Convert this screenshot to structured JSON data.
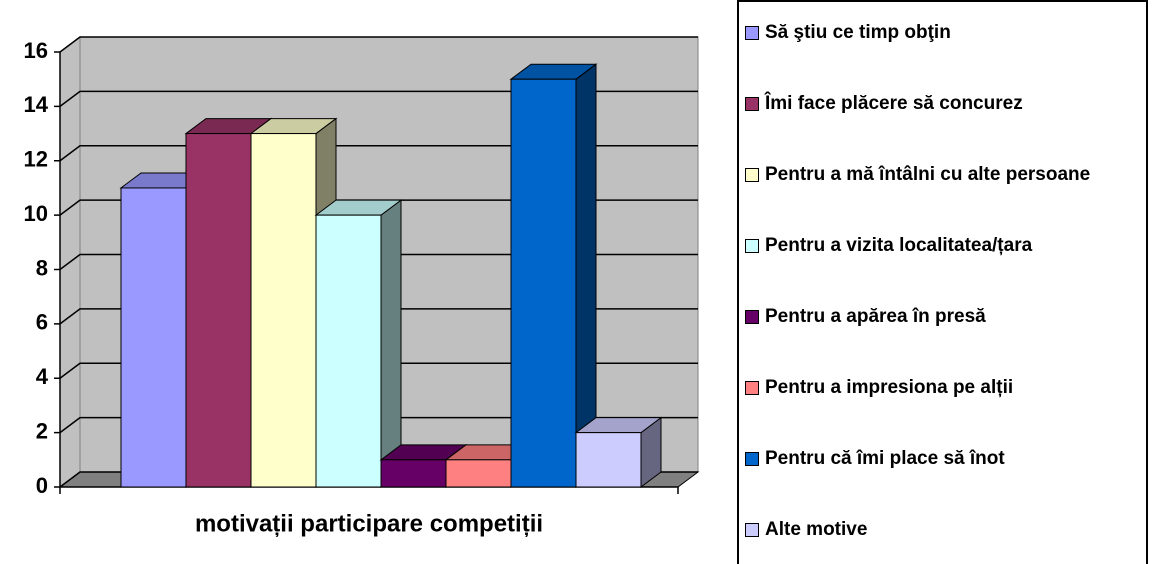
{
  "chart_data": {
    "type": "bar3d",
    "categories": [
      "motivații participare competiții"
    ],
    "series": [
      {
        "name": "Să ştiu ce timp obţin",
        "color": "#9999ff",
        "values": [
          11
        ]
      },
      {
        "name": "Îmi face plăcere să concurez",
        "color": "#993366",
        "values": [
          13
        ]
      },
      {
        "name": "Pentru a mă întâlni cu alte persoane",
        "color": "#ffffcc",
        "values": [
          13
        ]
      },
      {
        "name": "Pentru a vizita localitatea/țara",
        "color": "#ccffff",
        "values": [
          10
        ]
      },
      {
        "name": "Pentru a apărea în presă",
        "color": "#660066",
        "values": [
          1
        ]
      },
      {
        "name": "Pentru a impresiona pe alții",
        "color": "#ff8080",
        "values": [
          1
        ]
      },
      {
        "name": "Pentru că îmi place să înot",
        "color": "#0066cc",
        "values": [
          15
        ]
      },
      {
        "name": "Alte motive",
        "color": "#ccccff",
        "values": [
          2
        ]
      }
    ],
    "ylim": [
      0,
      16
    ],
    "yticks": [
      0,
      2,
      4,
      6,
      8,
      10,
      12,
      14,
      16
    ],
    "grid": true,
    "legend": "right"
  }
}
